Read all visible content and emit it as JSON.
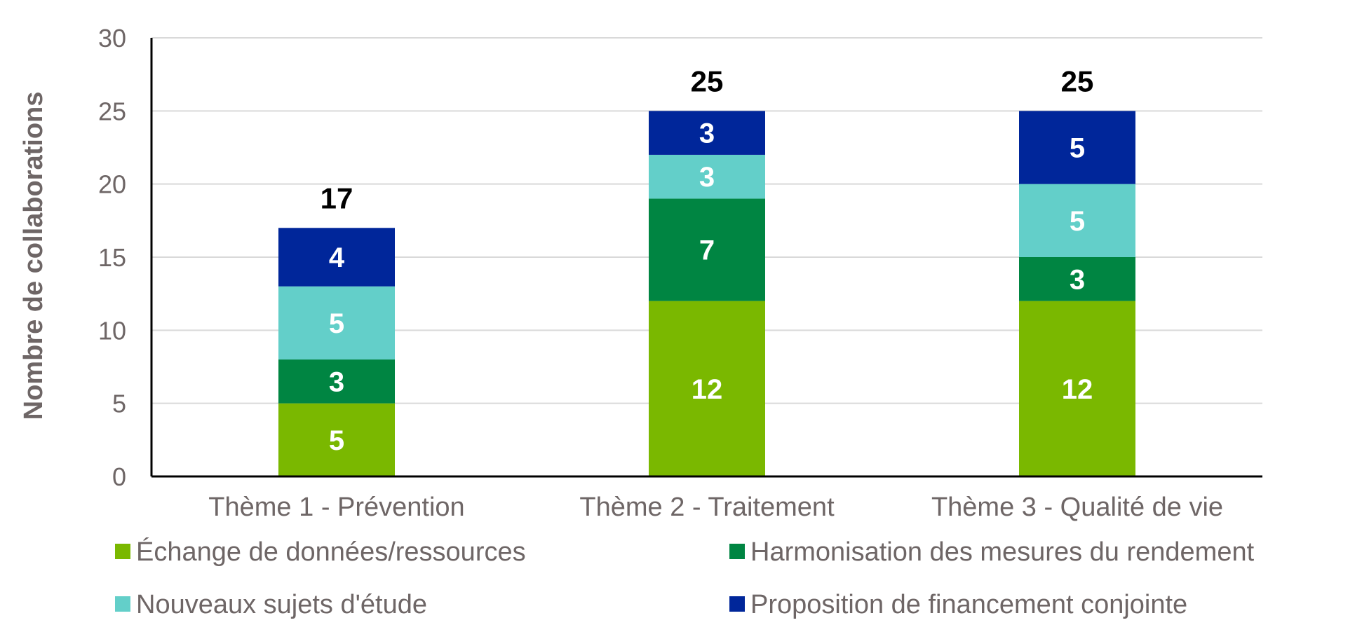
{
  "chart_data": {
    "type": "bar",
    "stacked": true,
    "title": "",
    "xlabel": "",
    "ylabel": "Nombre de collaborations",
    "ylim": [
      0,
      30
    ],
    "yticks": [
      0,
      5,
      10,
      15,
      20,
      25,
      30
    ],
    "grid": true,
    "legend_position": "bottom",
    "categories": [
      "Thème 1 - Prévention",
      "Thème 2 - Traitement",
      "Thème 3 - Qualité de vie"
    ],
    "series": [
      {
        "name": "Échange de données/ressources",
        "color": "#7ab800",
        "values": [
          5,
          12,
          12
        ]
      },
      {
        "name": "Harmonisation des mesures du rendement",
        "color": "#008542",
        "values": [
          3,
          7,
          3
        ]
      },
      {
        "name": "Nouveaux sujets d'étude",
        "color": "#63cfc9",
        "values": [
          5,
          3,
          5
        ]
      },
      {
        "name": "Proposition de financement conjointe",
        "color": "#00269a",
        "values": [
          4,
          3,
          5
        ]
      }
    ],
    "totals": [
      17,
      25,
      25
    ]
  },
  "colors": {
    "grid": "#d9d9d9",
    "axis": "#000000",
    "text": "#6e6666"
  }
}
